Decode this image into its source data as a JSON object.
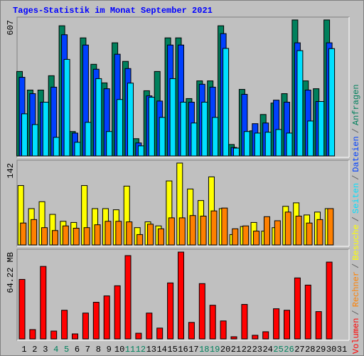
{
  "title": "Tages-Statistik im Monat September 2021",
  "title_color": "#0000ff",
  "legend_separator": "/",
  "chart_data": [
    {
      "type": "bar",
      "ylim": [
        0,
        607
      ],
      "yticks": [
        607
      ],
      "series": [
        {
          "name": "Anfragen",
          "color": "#00805c",
          "values": [
            377,
            294,
            294,
            358,
            581,
            109,
            527,
            409,
            326,
            505,
            422,
            77,
            291,
            377,
            527,
            527,
            256,
            335,
            335,
            581,
            51,
            297,
            112,
            185,
            236,
            278,
            607,
            335,
            300,
            607,
            null
          ]
        },
        {
          "name": "Dateien",
          "color": "#0040ff",
          "values": [
            351,
            278,
            240,
            307,
            541,
            102,
            495,
            387,
            300,
            454,
            390,
            58,
            268,
            245,
            495,
            495,
            240,
            320,
            307,
            546,
            38,
            275,
            144,
            147,
            249,
            240,
            505,
            294,
            243,
            505,
            null
          ]
        },
        {
          "name": "Seiten",
          "color": "#00e0ff",
          "values": [
            188,
            140,
            240,
            83,
            431,
            61,
            150,
            345,
            109,
            252,
            325,
            45,
            262,
            172,
            345,
            240,
            147,
            240,
            172,
            480,
            35,
            109,
            102,
            106,
            118,
            102,
            470,
            156,
            243,
            479,
            null
          ]
        }
      ]
    },
    {
      "type": "bar",
      "ylim": [
        0,
        142
      ],
      "yticks": [
        142
      ],
      "series": [
        {
          "name": "Besuche",
          "color": "#ffff00",
          "values": [
            103,
            63,
            75,
            53,
            41,
            39,
            103,
            63,
            63,
            61,
            102,
            30,
            40,
            33,
            111,
            142,
            97,
            77,
            118,
            63,
            18,
            32,
            39,
            24,
            30,
            67,
            73,
            52,
            57,
            63,
            null
          ]
        },
        {
          "name": "Rechner",
          "color": "#ff8000",
          "values": [
            38,
            44,
            30,
            25,
            33,
            29,
            30,
            35,
            41,
            41,
            40,
            18,
            36,
            28,
            47,
            47,
            51,
            50,
            59,
            64,
            28,
            33,
            24,
            49,
            42,
            57,
            50,
            38,
            44,
            63,
            null
          ]
        }
      ]
    },
    {
      "type": "bar",
      "ylim": [
        0,
        64.22
      ],
      "yticks": [
        {
          "value": 64.22,
          "label": "64.22 MB"
        }
      ],
      "categories": [
        "1",
        "2",
        "3",
        "4",
        "5",
        "6",
        "7",
        "8",
        "9",
        "10",
        "11",
        "12",
        "13",
        "14",
        "15",
        "16",
        "17",
        "18",
        "19",
        "20",
        "21",
        "22",
        "23",
        "24",
        "25",
        "26",
        "27",
        "28",
        "29",
        "30",
        "31"
      ],
      "category_colors": [
        "#000000",
        "#000000",
        "#000000",
        "#00805c",
        "#00805c",
        "#000000",
        "#000000",
        "#000000",
        "#000000",
        "#000000",
        "#00805c",
        "#00805c",
        "#000000",
        "#000000",
        "#000000",
        "#000000",
        "#000000",
        "#00805c",
        "#00805c",
        "#000000",
        "#000000",
        "#000000",
        "#000000",
        "#000000",
        "#00805c",
        "#00805c",
        "#000000",
        "#000000",
        "#000000",
        "#000000",
        "#000000"
      ],
      "series": [
        {
          "name": "Volumen",
          "color": "#ff0000",
          "values": [
            44.0,
            6.9,
            53.6,
            5.8,
            21.2,
            3.7,
            19.1,
            27.1,
            31.8,
            39.3,
            61.6,
            4.2,
            19.1,
            8.0,
            41.4,
            64.2,
            12.2,
            40.9,
            24.9,
            13.3,
            1.6,
            25.5,
            2.7,
            5.3,
            22.3,
            21.2,
            45.1,
            39.8,
            20.2,
            56.8,
            null
          ]
        }
      ]
    }
  ]
}
